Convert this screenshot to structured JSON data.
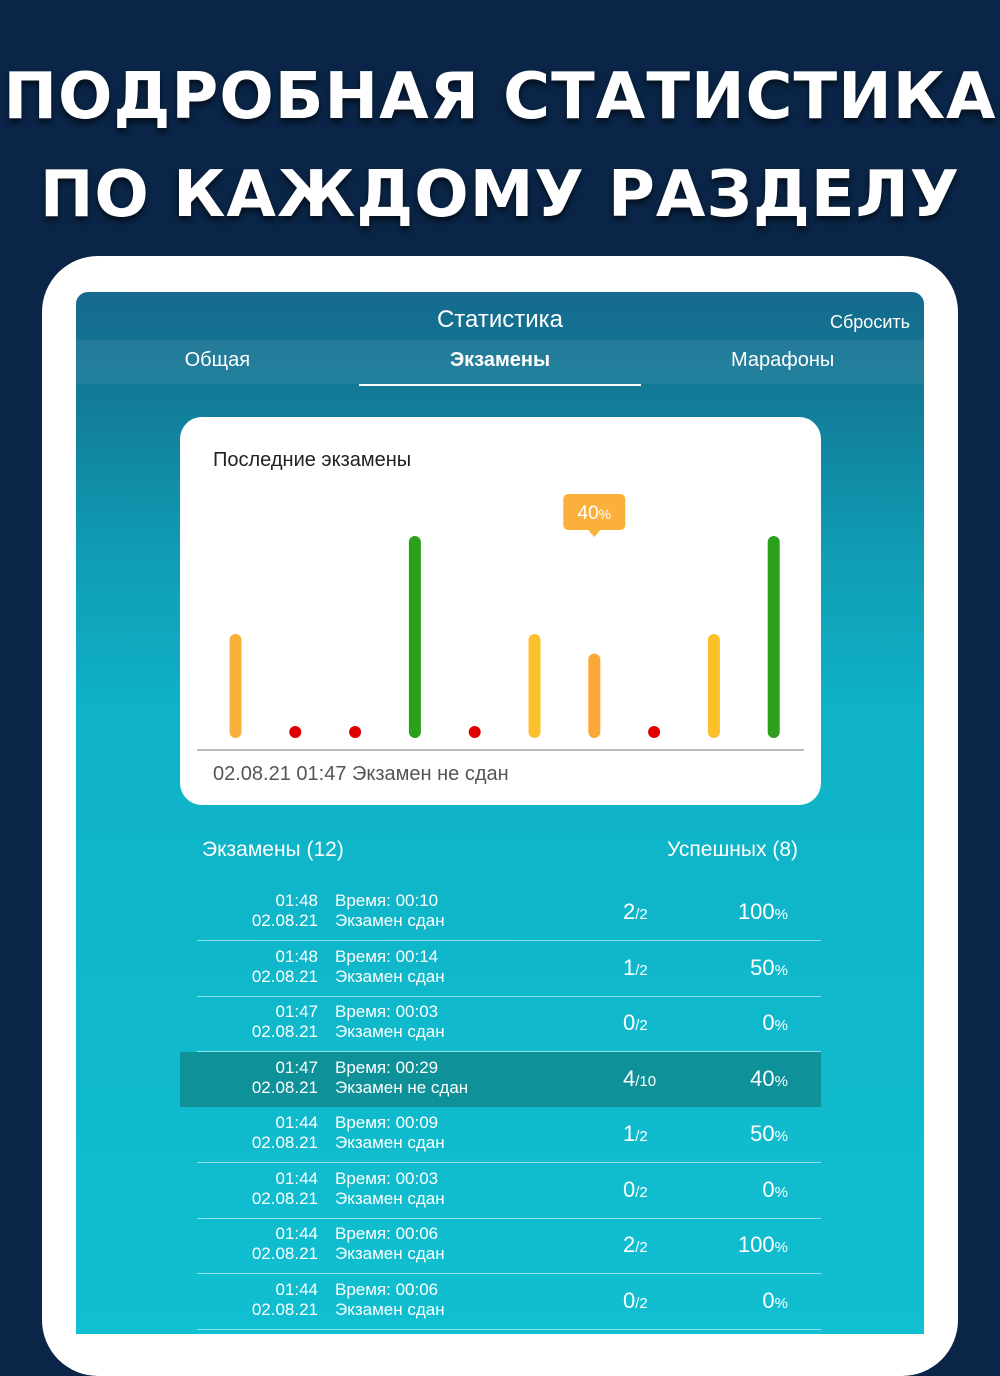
{
  "headline": {
    "line1": "ПОДРОБНАЯ СТАТИСТИКА",
    "line2": "ПО КАЖДОМУ РАЗДЕЛУ"
  },
  "nav": {
    "title": "Статистика",
    "reset_label": "Сбросить"
  },
  "tabs": [
    {
      "label": "Общая",
      "active": false
    },
    {
      "label": "Экзамены",
      "active": true
    },
    {
      "label": "Марафоны",
      "active": false
    }
  ],
  "chart_card": {
    "title": "Последние экзамены",
    "status_text": "02.08.21 01:47 Экзамен не сдан"
  },
  "chart_data": {
    "type": "bar",
    "title": "Последние экзамены",
    "ylim": [
      0,
      100
    ],
    "values": [
      50,
      0,
      0,
      100,
      0,
      50,
      40,
      0,
      50,
      100
    ],
    "colors": [
      "#fbb03b",
      "#e00000",
      "#e00000",
      "#2ca01c",
      "#e00000",
      "#fcc02c",
      "#fba838",
      "#e00000",
      "#fcc02c",
      "#2ca01c"
    ],
    "selected_index": 6,
    "tooltip": {
      "value": "40",
      "unit": "%"
    },
    "tooltip_color": "#fbb03b",
    "grid": false
  },
  "list": {
    "exams_label": "Экзамены (12)",
    "success_label": "Успешных (8)",
    "rows": [
      {
        "time": "01:48",
        "date": "02.08.21",
        "duration": "Время: 00:10",
        "status": "Экзамен сдан",
        "score": "2",
        "total": "/2",
        "pct": "100",
        "pct_unit": "%",
        "selected": false
      },
      {
        "time": "01:48",
        "date": "02.08.21",
        "duration": "Время: 00:14",
        "status": "Экзамен сдан",
        "score": "1",
        "total": "/2",
        "pct": "50",
        "pct_unit": "%",
        "selected": false
      },
      {
        "time": "01:47",
        "date": "02.08.21",
        "duration": "Время: 00:03",
        "status": "Экзамен сдан",
        "score": "0",
        "total": "/2",
        "pct": "0",
        "pct_unit": "%",
        "selected": false
      },
      {
        "time": "01:47",
        "date": "02.08.21",
        "duration": "Время: 00:29",
        "status": "Экзамен не сдан",
        "score": "4",
        "total": "/10",
        "pct": "40",
        "pct_unit": "%",
        "selected": true
      },
      {
        "time": "01:44",
        "date": "02.08.21",
        "duration": "Время: 00:09",
        "status": "Экзамен сдан",
        "score": "1",
        "total": "/2",
        "pct": "50",
        "pct_unit": "%",
        "selected": false
      },
      {
        "time": "01:44",
        "date": "02.08.21",
        "duration": "Время: 00:03",
        "status": "Экзамен сдан",
        "score": "0",
        "total": "/2",
        "pct": "0",
        "pct_unit": "%",
        "selected": false
      },
      {
        "time": "01:44",
        "date": "02.08.21",
        "duration": "Время: 00:06",
        "status": "Экзамен сдан",
        "score": "2",
        "total": "/2",
        "pct": "100",
        "pct_unit": "%",
        "selected": false
      },
      {
        "time": "01:44",
        "date": "02.08.21",
        "duration": "Время: 00:06",
        "status": "Экзамен сдан",
        "score": "0",
        "total": "/2",
        "pct": "0",
        "pct_unit": "%",
        "selected": false
      }
    ]
  },
  "colors": {
    "page_background": "#0a2547",
    "screen_top": "#156a8d",
    "screen_bottom": "#10bfd1",
    "selected_row": "#0e9199"
  }
}
